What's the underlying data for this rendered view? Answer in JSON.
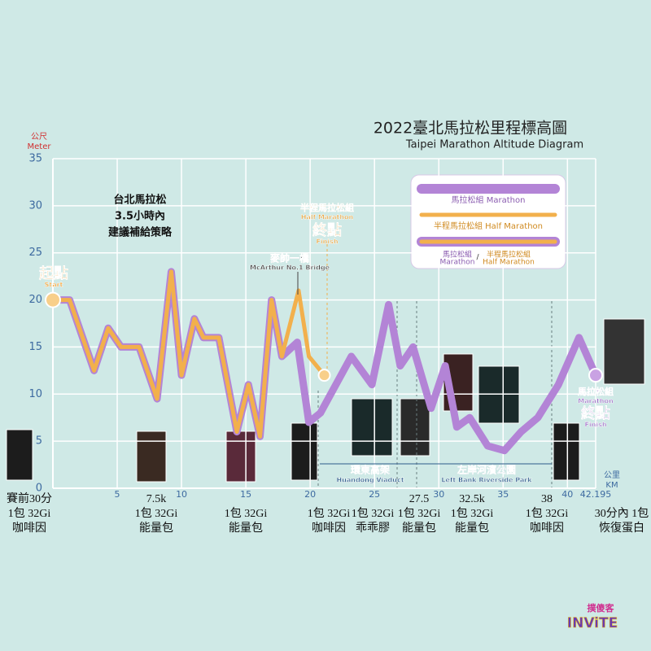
{
  "chart_data": {
    "type": "line",
    "title": "2022臺北馬拉松里程標高圖",
    "subtitle": "Taipei Marathon Altitude Diagram",
    "y_label": [
      "公尺",
      "Meter"
    ],
    "x_label": [
      "公里",
      "KM"
    ],
    "xlim": [
      0,
      42.195
    ],
    "xticks": [
      5,
      10,
      15,
      20,
      25,
      30,
      35,
      40,
      42.195
    ],
    "ylim": [
      0,
      35
    ],
    "yticks": [
      0,
      5,
      10,
      15,
      20,
      25,
      30,
      35
    ],
    "grid": true,
    "series": [
      {
        "name": "馬拉松組 Marathon",
        "color": "#b384d6",
        "x": [
          0,
          1.3,
          3.2,
          4.3,
          5.3,
          6.7,
          8.1,
          9.2,
          10.0,
          11.0,
          11.7,
          12.9,
          14.3,
          15.2,
          16.1,
          17.0,
          17.8,
          19.0,
          19.9,
          20.8,
          23.2,
          24.8,
          26.1,
          27.0,
          28.0,
          29.4,
          30.5,
          31.4,
          32.4,
          33.8,
          35.1,
          36.4,
          37.7,
          39.3,
          40.9,
          42.195
        ],
        "values": [
          20,
          20,
          12.5,
          17,
          15,
          15,
          9.5,
          23,
          12,
          18,
          16,
          16,
          6,
          11,
          5.5,
          20,
          14,
          15.5,
          7,
          8,
          14,
          11,
          19.5,
          13,
          15,
          8.5,
          13,
          6.5,
          7.5,
          4.5,
          4,
          6,
          7.5,
          11,
          16,
          12
        ]
      },
      {
        "name": "半程馬拉松組 Half Marathon",
        "color": "#f2b04c",
        "x": [
          0,
          1.3,
          3.2,
          4.3,
          5.3,
          6.7,
          8.1,
          9.2,
          10.0,
          11.0,
          11.7,
          12.9,
          14.3,
          15.2,
          16.1,
          17.0,
          17.8,
          19.1,
          19.9,
          21.1
        ],
        "values": [
          20,
          20,
          12.5,
          17,
          15,
          15,
          9.5,
          23,
          12,
          18,
          16,
          16,
          6,
          11,
          5.5,
          20,
          14,
          21,
          14,
          12
        ]
      }
    ],
    "legend_combined": [
      "馬拉松組",
      "Marathon",
      "/",
      "半程馬拉松組",
      "Half Marathon"
    ],
    "note": [
      "台北馬拉松",
      "3.5小時內",
      "建議補給策略"
    ],
    "annotations": [
      {
        "text": [
          "起點",
          "Start"
        ]
      },
      {
        "text": [
          "半程馬拉松組",
          "Half Marathon",
          "終點",
          "Finish"
        ]
      },
      {
        "text": [
          "麥帥一橋",
          "McArthur No.1 Bridge"
        ]
      },
      {
        "text": [
          "環東高架",
          "Huandong Viaduct"
        ]
      },
      {
        "text": [
          "左岸河濱公園",
          "Left Bank Riverside Park"
        ]
      },
      {
        "text": [
          "馬拉松組",
          "Marathon",
          "終點",
          "Finish"
        ]
      }
    ],
    "supplies": [
      {
        "lines": [
          "賽前30分",
          "1包 32Gi",
          "咖啡因"
        ]
      },
      {
        "km": "7.5k",
        "lines": [
          "1包 32Gi",
          "能量包"
        ]
      },
      {
        "lines": [
          "1包 32Gi",
          "能量包"
        ]
      },
      {
        "lines": [
          "1包 32Gi",
          "咖啡因"
        ]
      },
      {
        "lines": [
          "1包 32Gi",
          "乖乖膠"
        ]
      },
      {
        "km": "27.5",
        "lines": [
          "1包 32Gi",
          "能量包"
        ]
      },
      {
        "km": "32.5k",
        "lines": [
          "1包 32Gi",
          "能量包"
        ]
      },
      {
        "km": "38",
        "lines": [
          "1包 32Gi",
          "咖啡因"
        ]
      },
      {
        "lines": [
          "30分內 1包",
          "恢復蛋白"
        ]
      }
    ]
  },
  "logo": [
    "撲傻客",
    "INViTE"
  ]
}
